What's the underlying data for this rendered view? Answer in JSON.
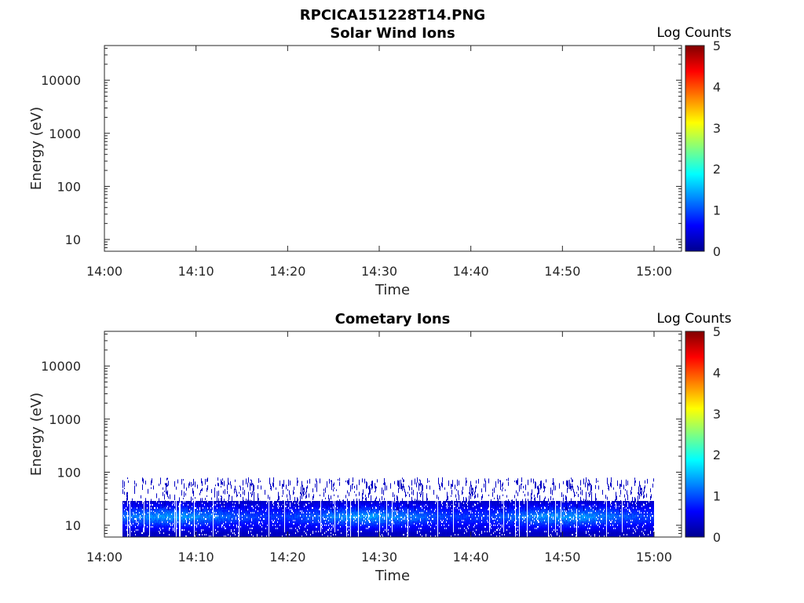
{
  "figure_title": "RPCICA151228T14.PNG",
  "colors": {
    "colormap": [
      "#00008f",
      "#0000ff",
      "#0080ff",
      "#00ffff",
      "#80ff80",
      "#ffff00",
      "#ff8000",
      "#ff0000",
      "#800000"
    ],
    "axis": "#262626"
  },
  "chart_data": [
    {
      "type": "heatmap",
      "title": "Solar Wind Ions",
      "xlabel": "Time",
      "ylabel": "Energy (eV)",
      "x_ticks": [
        "14:00",
        "14:10",
        "14:20",
        "14:30",
        "14:40",
        "14:50",
        "15:00"
      ],
      "x_range": [
        "14:00",
        "15:03"
      ],
      "y_scale": "log",
      "y_ticks": [
        10,
        100,
        1000,
        10000
      ],
      "y_tick_labels": [
        "10",
        "100",
        "1000",
        "10000"
      ],
      "y_range": [
        6,
        45000
      ],
      "grid": false,
      "colorbar": {
        "label": "Log Counts",
        "range": [
          0,
          5
        ],
        "ticks": [
          "0",
          "1",
          "2",
          "3",
          "4",
          "5"
        ]
      },
      "data": []
    },
    {
      "type": "heatmap",
      "title": "Cometary Ions",
      "xlabel": "Time",
      "ylabel": "Energy (eV)",
      "x_ticks": [
        "14:00",
        "14:10",
        "14:20",
        "14:30",
        "14:40",
        "14:50",
        "15:00"
      ],
      "x_range": [
        "14:00",
        "15:03"
      ],
      "y_scale": "log",
      "y_ticks": [
        10,
        100,
        1000,
        10000
      ],
      "y_tick_labels": [
        "10",
        "100",
        "1000",
        "10000"
      ],
      "y_range": [
        6,
        45000
      ],
      "grid": false,
      "colorbar": {
        "label": "Log Counts",
        "range": [
          0,
          5
        ],
        "ticks": [
          "0",
          "1",
          "2",
          "3",
          "4",
          "5"
        ]
      },
      "data": {
        "time_range": [
          "14:02",
          "15:00"
        ],
        "sparse_band_energy_eV": [
          22,
          80
        ],
        "sparse_band_log_counts": 0.3,
        "dense_band_energy_eV": [
          6,
          28
        ],
        "dense_band_log_counts": [
          0.3,
          1.6
        ],
        "peak_energy_eV": 15
      }
    }
  ]
}
